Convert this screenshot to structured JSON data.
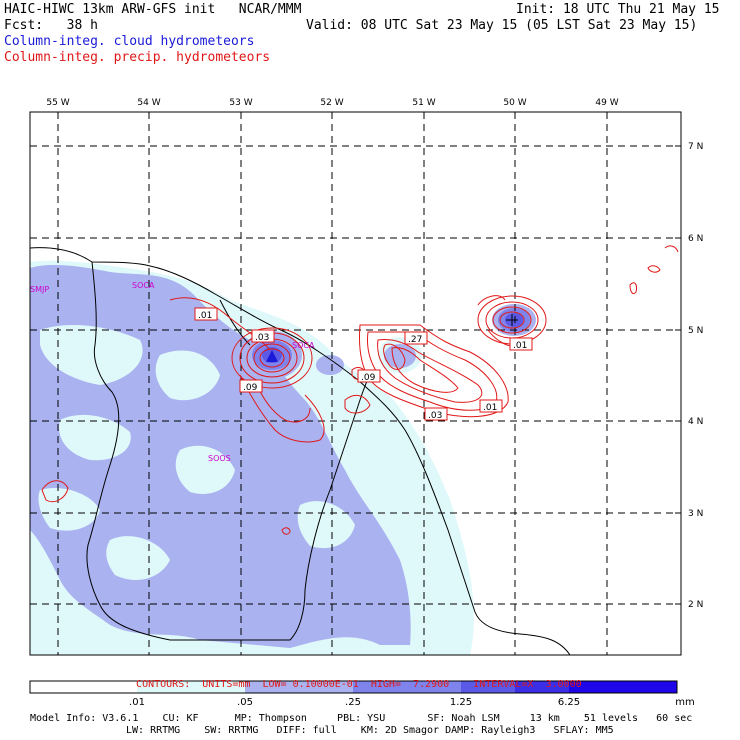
{
  "header": {
    "title": "HAIC-HIWC 13km ARW-GFS init   NCAR/MMM",
    "init": "Init: 18 UTC Thu 21 May 15",
    "fcst": "Fcst:   38 h",
    "valid": "Valid: 08 UTC Sat 23 May 15 (05 LST Sat 23 May 15)",
    "field_cloud": "Column-integ. cloud hydrometeors",
    "field_precip": "Column-integ. precip. hydrometeors"
  },
  "map": {
    "lon_labels": [
      "55 W",
      "54 W",
      "53 W",
      "52 W",
      "51 W",
      "50 W",
      "49 W"
    ],
    "lat_labels": [
      "7 N",
      "6 N",
      "5 N",
      "4 N",
      "3 N",
      "2 N"
    ],
    "stations": [
      "SMJP",
      "SOCA",
      "SOOS",
      "SOCA"
    ],
    "contour_labels": [
      ".01",
      ".03",
      ".09",
      ".27",
      ".09",
      ".03",
      ".01",
      ".01"
    ]
  },
  "contours_info": {
    "contours": "CONTOURS:",
    "units": "UNITS=mm",
    "low": "LOW= 0.10000E-01",
    "high": "HIGH=  7.2900",
    "interval": "INTERVAL=X  3.0000"
  },
  "colorbar": {
    "ticks": [
      ".01",
      ".05",
      ".25",
      "1.25",
      "6.25"
    ],
    "unit": "mm",
    "colors": [
      "#ffffff",
      "#dff8fa",
      "#aab2f0",
      "#7e84ec",
      "#5b5ae6",
      "#3a2ee6",
      "#1e06e8"
    ]
  },
  "model_info": {
    "line1": "Model Info: V3.6.1    CU: KF      MP: Thompson     PBL: YSU       SF: Noah LSM     13 km    51 levels   60 sec",
    "line2": "LW: RRTMG    SW: RRTMG   DIFF: full    KM: 2D Smagor DAMP: Rayleigh3   SFLAY: MM5"
  },
  "colors": {
    "title_blue": "#1a1ad8",
    "title_red": "#e01818",
    "contour_red": "#e01818",
    "station_magenta": "#cc00cc"
  }
}
